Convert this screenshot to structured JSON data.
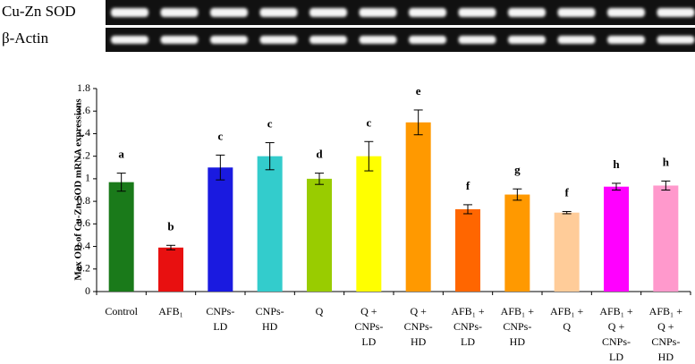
{
  "chart_data": {
    "type": "bar",
    "gel_labels": [
      "Cu-Zn SOD",
      "β-Actin"
    ],
    "y_label": "Max OD of Cu-Zn SOD mRNA expressions",
    "categories": [
      [
        "Control"
      ],
      [
        "AFB₁"
      ],
      [
        "CNPs-",
        "LD"
      ],
      [
        "CNPs-",
        "HD"
      ],
      [
        "Q"
      ],
      [
        "Q +",
        "CNPs-",
        "LD"
      ],
      [
        "Q +",
        "CNPs-",
        "HD"
      ],
      [
        "AFB₁ +",
        "CNPs-",
        "LD"
      ],
      [
        "AFB₁ +",
        "CNPs-",
        "HD"
      ],
      [
        "AFB₁ +",
        "Q"
      ],
      [
        "AFB₁ +",
        "Q +",
        "CNPs-",
        "LD"
      ],
      [
        "AFB₁ +",
        "Q +",
        "CNPs-",
        "HD"
      ]
    ],
    "values": [
      0.97,
      0.39,
      1.1,
      1.2,
      1.0,
      1.2,
      1.5,
      0.73,
      0.86,
      0.7,
      0.93,
      0.94
    ],
    "errors": [
      0.08,
      0.02,
      0.11,
      0.12,
      0.05,
      0.13,
      0.11,
      0.04,
      0.05,
      0.01,
      0.03,
      0.04
    ],
    "annotations": [
      "a",
      "b",
      "c",
      "c",
      "d",
      "c",
      "e",
      "f",
      "g",
      "f",
      "h",
      "h"
    ],
    "colors": [
      "#1a7a1a",
      "#e81010",
      "#1a1ae0",
      "#33cccc",
      "#99cc00",
      "#ffff00",
      "#ff9900",
      "#ff6600",
      "#ff9900",
      "#ffcc99",
      "#ff00ff",
      "#ff99cc"
    ],
    "ylim": [
      0,
      1.8
    ],
    "yticks": [
      0,
      0.2,
      0.4,
      0.6,
      0.8,
      1,
      1.2,
      1.4,
      1.6,
      1.8
    ]
  }
}
